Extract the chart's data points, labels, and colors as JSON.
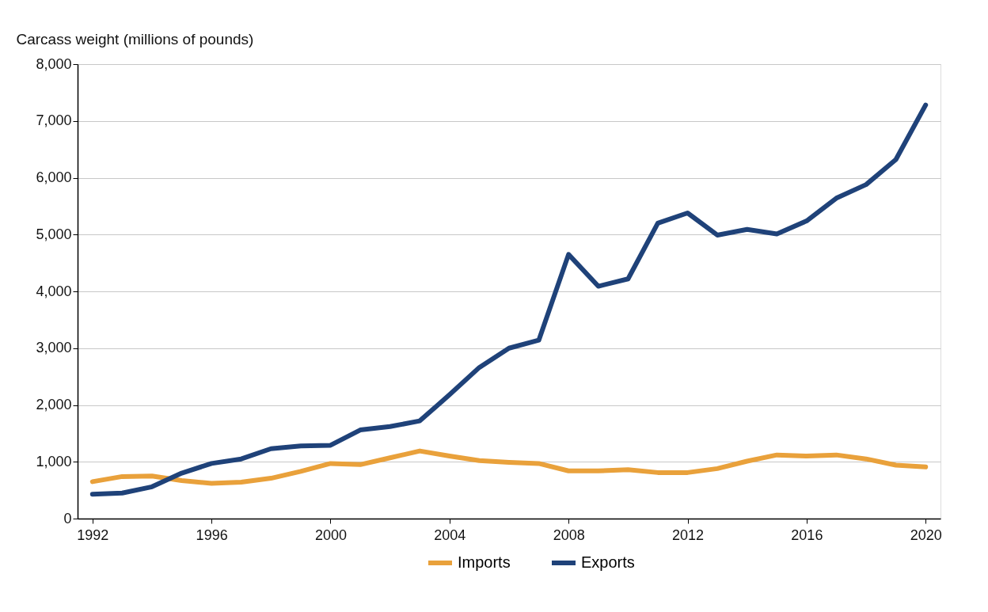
{
  "chart_data": {
    "type": "line",
    "ylabel": "Carcass weight (millions of pounds)",
    "x": [
      1992,
      1993,
      1994,
      1995,
      1996,
      1997,
      1998,
      1999,
      2000,
      2001,
      2002,
      2003,
      2004,
      2005,
      2006,
      2007,
      2008,
      2009,
      2010,
      2011,
      2012,
      2013,
      2014,
      2015,
      2016,
      2017,
      2018,
      2019,
      2020
    ],
    "series": [
      {
        "name": "Imports",
        "color": "#e9a13b",
        "values": [
          650,
          740,
          750,
          670,
          620,
          640,
          710,
          830,
          970,
          950,
          1070,
          1190,
          1100,
          1020,
          990,
          970,
          840,
          840,
          860,
          810,
          810,
          880,
          1010,
          1120,
          1100,
          1120,
          1050,
          940,
          910
        ]
      },
      {
        "name": "Exports",
        "color": "#1f4279",
        "values": [
          430,
          450,
          560,
          800,
          970,
          1050,
          1230,
          1280,
          1290,
          1560,
          1620,
          1720,
          2180,
          2660,
          3000,
          3140,
          4650,
          4090,
          4220,
          5200,
          5380,
          4990,
          5090,
          5010,
          5240,
          5640,
          5880,
          6320,
          7280
        ]
      }
    ],
    "xlim": [
      1991.5,
      2020.5
    ],
    "xticks": [
      1992,
      1996,
      2000,
      2004,
      2008,
      2012,
      2016,
      2020
    ],
    "ylim": [
      0,
      8000
    ],
    "yticks": [
      0,
      {
        "value": 1000,
        "label": "1,000"
      },
      {
        "value": 2000,
        "label": "2,000"
      },
      {
        "value": 3000,
        "label": "3,000"
      },
      {
        "value": 4000,
        "label": "4,000"
      },
      {
        "value": 5000,
        "label": "5,000"
      },
      {
        "value": 6000,
        "label": "6,000"
      },
      {
        "value": 7000,
        "label": "7,000"
      },
      {
        "value": 8000,
        "label": "8,000"
      }
    ],
    "grid": "y",
    "legend": "bottom",
    "marker": "none",
    "line_style": "solid"
  }
}
